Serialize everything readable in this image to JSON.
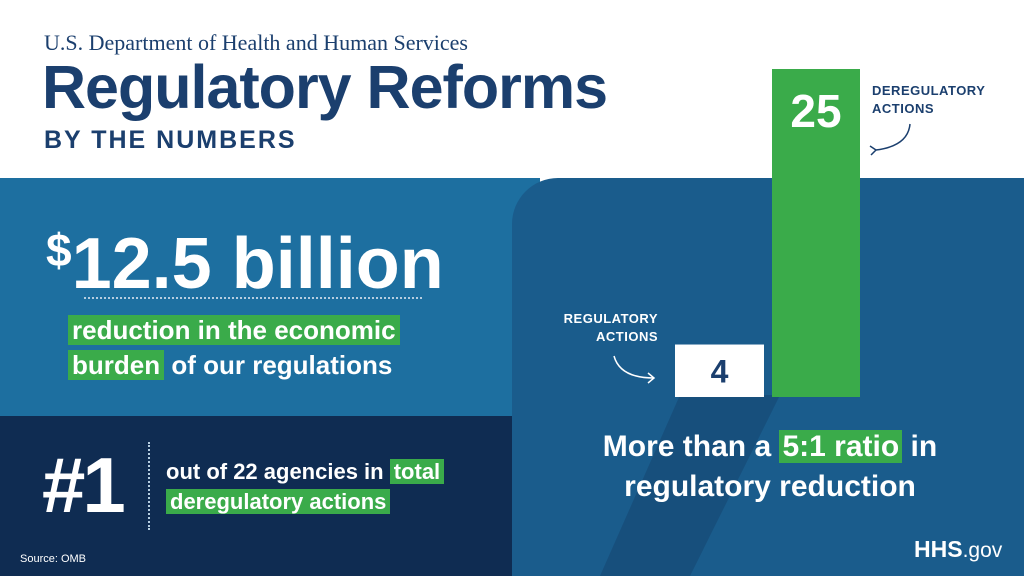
{
  "header": {
    "department": "U.S. Department of Health and Human Services",
    "title": "Regulatory Reforms",
    "subtitle": "BY THE NUMBERS"
  },
  "savings": {
    "currency_symbol": "$",
    "amount": "12.5 billion",
    "desc_highlight_1": "reduction in the economic",
    "desc_highlight_2": "burden",
    "desc_rest": "of our regulations"
  },
  "ranking": {
    "rank": "#1",
    "desc_plain": "out of 22 agencies in",
    "desc_highlight_1": "total",
    "desc_highlight_2": "deregulatory actions"
  },
  "chart_data": {
    "type": "bar",
    "categories": [
      "REGULATORY ACTIONS",
      "DEREGULATORY ACTIONS"
    ],
    "values": [
      4,
      25
    ],
    "bar_colors": [
      "#ffffff",
      "#3aab4a"
    ],
    "value_label_colors": [
      "#1b3f6e",
      "#ffffff"
    ],
    "title": "",
    "xlabel": "",
    "ylabel": "",
    "ylim": [
      0,
      25
    ]
  },
  "chart_labels": {
    "regulatory_line1": "REGULATORY",
    "regulatory_line2": "ACTIONS",
    "deregulatory_line1": "DEREGULATORY",
    "deregulatory_line2": "ACTIONS"
  },
  "ratio": {
    "prefix": "More than a",
    "highlight": "5:1 ratio",
    "suffix": "in",
    "line2": "regulatory reduction"
  },
  "source": "Source: OMB",
  "logo": {
    "hhs": "HHS",
    "gov": ".gov"
  },
  "colors": {
    "navy": "#1b3f6e",
    "mid_blue": "#1d6fa0",
    "dark_navy": "#0f2c52",
    "right_blue": "#1a5c8c",
    "green": "#3aab4a"
  }
}
